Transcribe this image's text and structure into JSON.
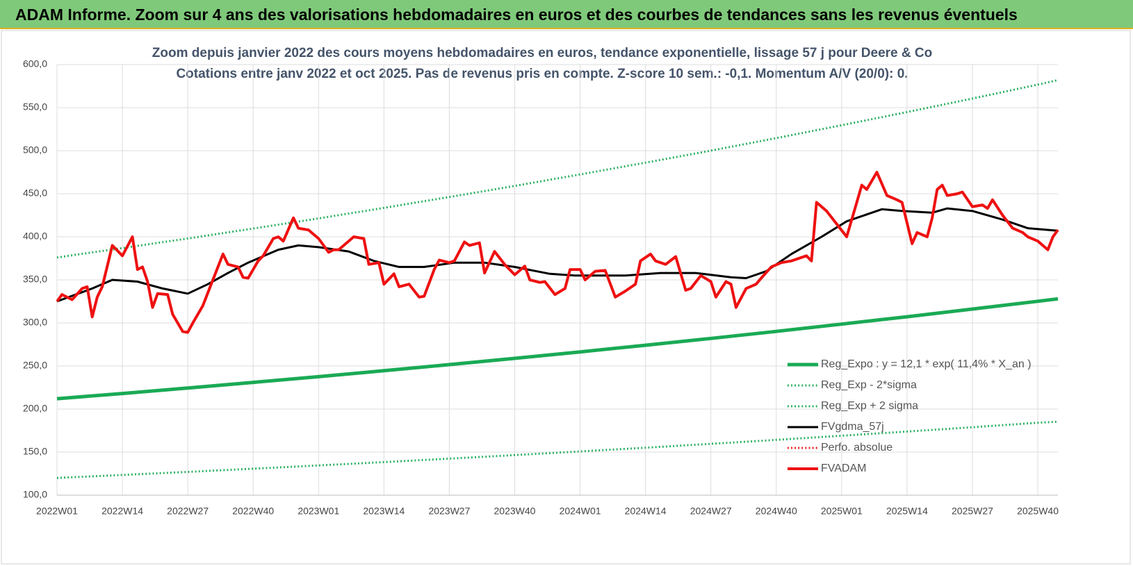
{
  "header": {
    "title": "ADAM Informe. Zoom sur 4 ans des valorisations hebdomadaires en euros et des courbes de tendances sans les revenus éventuels"
  },
  "chart_data": {
    "type": "line",
    "title": "Zoom depuis janvier 2022 des cours moyens hebdomadaires en euros, tendance exponentielle, lissage 57 j pour Deere & Co",
    "subtitle": "Cotations entre janv 2022 et oct 2025. Pas de revenus pris en compte. Z-score 10 sem.: -0,1.  Momentum A/V (20/0): 0.",
    "xlim": [
      0,
      199
    ],
    "xticks": [
      {
        "value": 0,
        "label": "2022W01"
      },
      {
        "value": 13,
        "label": "2022W14"
      },
      {
        "value": 26,
        "label": "2022W27"
      },
      {
        "value": 39,
        "label": "2022W40"
      },
      {
        "value": 52,
        "label": "2023W01"
      },
      {
        "value": 65,
        "label": "2023W14"
      },
      {
        "value": 78,
        "label": "2023W27"
      },
      {
        "value": 91,
        "label": "2023W40"
      },
      {
        "value": 104,
        "label": "2024W01"
      },
      {
        "value": 117,
        "label": "2024W14"
      },
      {
        "value": 130,
        "label": "2024W27"
      },
      {
        "value": 143,
        "label": "2024W40"
      },
      {
        "value": 156,
        "label": "2025W01"
      },
      {
        "value": 169,
        "label": "2025W14"
      },
      {
        "value": 182,
        "label": "2025W27"
      },
      {
        "value": 195,
        "label": "2025W40"
      }
    ],
    "ylim": [
      100,
      600
    ],
    "yticks": [
      {
        "value": 100,
        "label": "100,0"
      },
      {
        "value": 150,
        "label": "150,0"
      },
      {
        "value": 200,
        "label": "200,0"
      },
      {
        "value": 250,
        "label": "250,0"
      },
      {
        "value": 300,
        "label": "300,0"
      },
      {
        "value": 350,
        "label": "350,0"
      },
      {
        "value": 400,
        "label": "400,0"
      },
      {
        "value": 450,
        "label": "450,0"
      },
      {
        "value": 500,
        "label": "500,0"
      },
      {
        "value": 550,
        "label": "550,0"
      },
      {
        "value": 600,
        "label": "600,0"
      }
    ],
    "grid": true,
    "legend": "bottom-right",
    "series": [
      {
        "name": "Reg_Expo : y = 12,1 * exp( 11,4% *  X_an )",
        "color": "#1aaa55",
        "style": "solid",
        "width": 5,
        "x": [
          0,
          13,
          26,
          39,
          52,
          65,
          78,
          91,
          104,
          117,
          130,
          143,
          156,
          169,
          182,
          195,
          199
        ],
        "values": [
          212,
          218.1,
          224.4,
          231.0,
          237.6,
          244.5,
          251.6,
          258.9,
          266.4,
          274.1,
          282.0,
          290.2,
          298.6,
          307.2,
          316.1,
          325.2,
          328
        ]
      },
      {
        "name": "Reg_Exp - 2*sigma",
        "color": "#1aaa55",
        "style": "dotted",
        "width": 3,
        "x": [
          0,
          13,
          26,
          39,
          52,
          65,
          78,
          91,
          104,
          117,
          130,
          143,
          156,
          169,
          182,
          195,
          199
        ],
        "values": [
          120,
          123.5,
          127.0,
          130.7,
          134.5,
          138.4,
          142.4,
          146.5,
          150.8,
          155.1,
          159.6,
          164.2,
          169.0,
          173.9,
          178.9,
          184.1,
          185.3
        ]
      },
      {
        "name": "Reg_Exp + 2 sigma",
        "color": "#1aaa55",
        "style": "dotted",
        "width": 3,
        "x": [
          0,
          13,
          26,
          39,
          52,
          65,
          78,
          91,
          104,
          117,
          130,
          143,
          156,
          169,
          182,
          195,
          199
        ],
        "values": [
          376,
          386.9,
          398.1,
          409.6,
          421.4,
          433.6,
          446.2,
          459.1,
          472.4,
          486.1,
          500.1,
          514.6,
          529.5,
          544.8,
          560.6,
          576.8,
          582
        ]
      },
      {
        "name": "FVgdma_57j",
        "color": "#000000",
        "style": "solid",
        "width": 3,
        "x": [
          0,
          7,
          11,
          16,
          21,
          26,
          30,
          34,
          38,
          44,
          48,
          52,
          58,
          63,
          68,
          73,
          79,
          85,
          91,
          98,
          103,
          113,
          120,
          127,
          134,
          137,
          141,
          146,
          152,
          157,
          164,
          168,
          174,
          177,
          182,
          188,
          193,
          199
        ],
        "values": [
          325,
          340,
          350,
          348,
          340,
          334,
          345,
          358,
          370,
          385,
          390,
          388,
          383,
          372,
          365,
          365,
          370,
          370,
          365,
          357,
          355,
          355,
          358,
          358,
          353,
          352,
          360,
          380,
          400,
          418,
          432,
          430,
          428,
          433,
          430,
          420,
          410,
          407
        ]
      },
      {
        "name": "Perfo. absolue",
        "color": "#ee1111",
        "style": "dotted",
        "width": 3,
        "x": [],
        "values": []
      },
      {
        "name": "FVADAM",
        "color": "#ee1111",
        "style": "solid",
        "width": 4,
        "x": [
          0,
          1,
          3,
          5,
          6,
          7,
          8,
          9,
          11,
          13,
          15,
          16,
          17,
          18,
          19,
          20,
          22,
          23,
          25,
          26,
          27,
          29,
          31,
          33,
          34,
          36,
          37,
          38,
          40,
          41,
          43,
          44,
          45,
          47,
          48,
          50,
          52,
          54,
          55,
          56,
          59,
          61,
          62,
          64,
          65,
          67,
          68,
          70,
          72,
          73,
          75,
          76,
          78,
          79,
          81,
          82,
          84,
          85,
          87,
          89,
          91,
          93,
          94,
          96,
          97,
          99,
          101,
          102,
          104,
          105,
          107,
          109,
          111,
          113,
          115,
          116,
          118,
          119,
          121,
          123,
          125,
          126,
          128,
          130,
          131,
          133,
          134,
          135,
          137,
          139,
          140,
          142,
          144,
          146,
          149,
          150,
          151,
          153,
          155,
          157,
          159,
          160,
          161,
          163,
          165,
          167,
          168,
          170,
          171,
          173,
          174,
          175,
          176,
          177,
          179,
          180,
          182,
          184,
          185,
          186,
          188,
          190,
          192,
          193,
          195,
          197,
          198,
          199
        ],
        "values": [
          325,
          333,
          327,
          340,
          342,
          307,
          330,
          342,
          390,
          378,
          400,
          362,
          365,
          348,
          318,
          334,
          333,
          310,
          290,
          289,
          300,
          320,
          350,
          380,
          368,
          365,
          353,
          352,
          372,
          378,
          398,
          400,
          395,
          422,
          410,
          408,
          398,
          382,
          385,
          385,
          400,
          398,
          368,
          370,
          345,
          357,
          342,
          345,
          330,
          331,
          362,
          373,
          370,
          372,
          394,
          390,
          393,
          358,
          383,
          368,
          356,
          366,
          350,
          347,
          348,
          333,
          340,
          362,
          362,
          350,
          360,
          361,
          330,
          337,
          345,
          372,
          380,
          372,
          368,
          377,
          338,
          340,
          355,
          348,
          330,
          348,
          345,
          318,
          340,
          345,
          352,
          365,
          370,
          372,
          378,
          372,
          440,
          430,
          415,
          400,
          440,
          460,
          455,
          475,
          448,
          443,
          440,
          392,
          405,
          400,
          422,
          455,
          460,
          448,
          450,
          452,
          435,
          437,
          433,
          443,
          425,
          410,
          405,
          400,
          395,
          385,
          400,
          408
        ]
      }
    ]
  }
}
